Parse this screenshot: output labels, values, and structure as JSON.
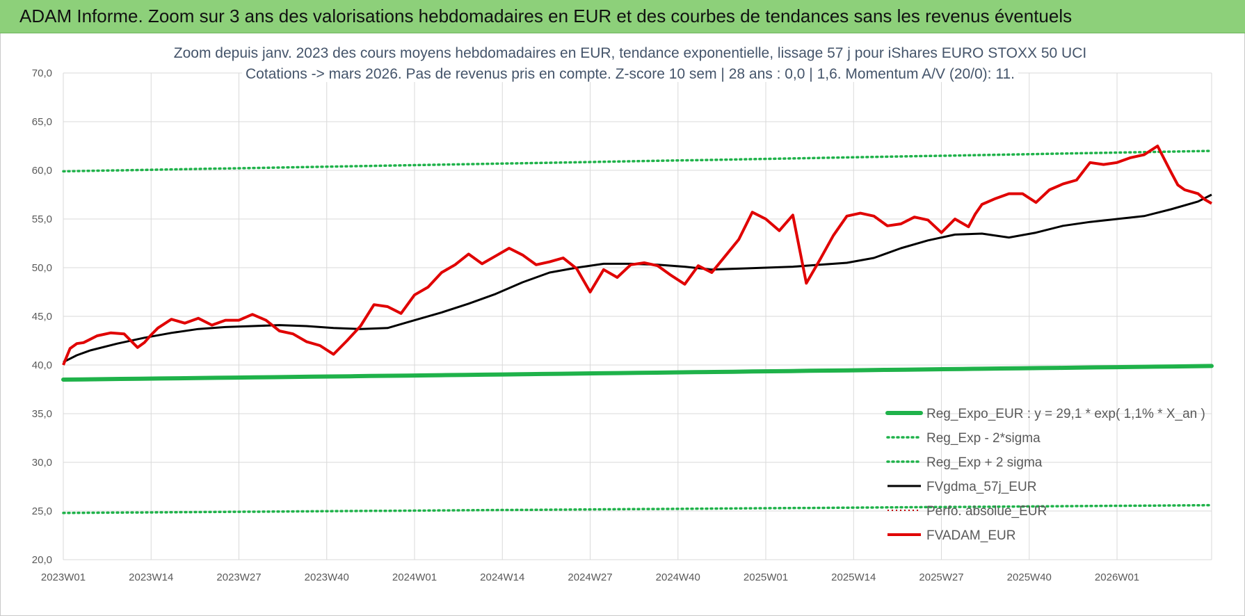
{
  "header": {
    "title": "ADAM Informe. Zoom sur 3 ans des valorisations hebdomadaires en EUR et des courbes de tendances sans les revenus éventuels"
  },
  "chart_data": {
    "type": "line",
    "title_lines": [
      "Zoom depuis janv. 2023 des cours moyens hebdomadaires en EUR, tendance exponentielle, lissage 57 j pour iShares EURO STOXX 50 UCI",
      "Cotations -> mars 2026. Pas de revenus pris en compte. Z-score 10 sem | 28 ans : 0,0 | 1,6. Momentum A/V (20/0): 11."
    ],
    "ylim": [
      20,
      70
    ],
    "yticks": [
      "70,0",
      "65,0",
      "60,0",
      "55,0",
      "50,0",
      "45,0",
      "40,0",
      "35,0",
      "30,0",
      "25,0",
      "20,0"
    ],
    "xticks": [
      "2023W01",
      "2023W14",
      "2023W27",
      "2023W40",
      "2024W01",
      "2024W14",
      "2024W27",
      "2024W40",
      "2025W01",
      "2025W14",
      "2025W27",
      "2025W40",
      "2026W01"
    ],
    "grid": true,
    "legend_position": "bottom-right",
    "series": [
      {
        "name": "Reg_Expo_EUR : y = 29,1 * exp( 1,1% *  X_an )",
        "color": "#1fb24a",
        "style": "solid-thick",
        "x": [
          0,
          170
        ],
        "y": [
          38.5,
          39.9
        ]
      },
      {
        "name": "Reg_Exp - 2*sigma",
        "color": "#1fb24a",
        "style": "dotted",
        "x": [
          0,
          170
        ],
        "y": [
          24.8,
          25.6
        ]
      },
      {
        "name": "Reg_Exp + 2 sigma",
        "color": "#1fb24a",
        "style": "dotted",
        "x": [
          0,
          170
        ],
        "y": [
          59.9,
          62.0
        ]
      },
      {
        "name": "FVgdma_57j_EUR",
        "color": "#000000",
        "style": "solid",
        "x": [
          0,
          2,
          4,
          8,
          12,
          16,
          20,
          24,
          28,
          32,
          36,
          40,
          44,
          48,
          52,
          56,
          60,
          64,
          68,
          72,
          76,
          80,
          84,
          88,
          92,
          96,
          100,
          104,
          108,
          112,
          116,
          120,
          124,
          128,
          132,
          136,
          140,
          144,
          148,
          152,
          156,
          160,
          164,
          168,
          170
        ],
        "y": [
          40.3,
          41.0,
          41.5,
          42.2,
          42.8,
          43.3,
          43.7,
          43.9,
          44.0,
          44.1,
          44.0,
          43.8,
          43.7,
          43.8,
          44.6,
          45.4,
          46.3,
          47.3,
          48.5,
          49.5,
          50.0,
          50.4,
          50.4,
          50.3,
          50.1,
          49.8,
          49.9,
          50.0,
          50.1,
          50.3,
          50.5,
          51.0,
          52.0,
          52.8,
          53.4,
          53.5,
          53.1,
          53.6,
          54.3,
          54.7,
          55.0,
          55.3,
          56.0,
          56.8,
          57.5
        ],
        "x2": [
          0,
          2,
          4,
          8,
          12,
          16,
          20,
          24,
          28,
          32,
          36,
          40,
          44,
          48,
          52,
          56,
          60,
          64,
          68,
          72,
          76,
          80,
          84,
          88,
          92,
          96,
          100,
          104,
          108,
          112,
          116,
          120,
          124,
          128,
          132,
          136,
          140,
          144,
          148,
          152,
          156,
          160,
          164,
          168,
          170
        ]
      },
      {
        "name": "Perfo. absolue_EUR",
        "color": "#c00000",
        "style": "dotted-thin",
        "x": [],
        "y": []
      },
      {
        "name": "FVADAM_EUR",
        "color": "#e00000",
        "style": "solid",
        "x": [
          0,
          1,
          2,
          3,
          5,
          7,
          9,
          11,
          12,
          13,
          14,
          16,
          18,
          20,
          22,
          24,
          26,
          28,
          30,
          32,
          34,
          36,
          38,
          40,
          42,
          44,
          46,
          48,
          50,
          52,
          54,
          56,
          58,
          60,
          62,
          64,
          66,
          68,
          70,
          72,
          74,
          76,
          78,
          80,
          82,
          84,
          86,
          88,
          90,
          92,
          94,
          96,
          98,
          100,
          102,
          104,
          106,
          108,
          110,
          112,
          114,
          116,
          118,
          120,
          122,
          124,
          126,
          128,
          130,
          132,
          134,
          135,
          136,
          138,
          140,
          142,
          144,
          146,
          148,
          150,
          152,
          154,
          156,
          158,
          160,
          162,
          164,
          165,
          166,
          168,
          169,
          170
        ],
        "y": [
          40.0,
          41.7,
          42.2,
          42.3,
          43.0,
          43.3,
          43.2,
          41.8,
          42.3,
          43.1,
          43.8,
          44.7,
          44.3,
          44.8,
          44.1,
          44.6,
          44.6,
          45.2,
          44.6,
          43.5,
          43.2,
          42.4,
          42.0,
          41.1,
          42.5,
          44.0,
          46.2,
          46.0,
          45.3,
          47.2,
          48.0,
          49.5,
          50.3,
          51.4,
          50.4,
          51.2,
          52.0,
          51.3,
          50.3,
          50.6,
          51.0,
          49.9,
          47.5,
          49.8,
          49.0,
          50.3,
          50.5,
          50.2,
          49.2,
          48.3,
          50.2,
          49.5,
          51.2,
          52.9,
          55.7,
          55.0,
          53.8,
          55.4,
          48.4,
          50.8,
          53.3,
          55.3,
          55.6,
          55.3,
          54.3,
          54.5,
          55.2,
          54.9,
          53.6,
          55.0,
          54.2,
          55.5,
          56.5,
          57.1,
          57.6,
          57.6,
          56.7,
          58.0,
          58.6,
          59.0,
          60.8,
          60.6,
          60.8,
          61.3,
          61.6,
          62.5,
          59.8,
          58.5,
          58.0,
          57.6,
          57.0,
          56.6
        ]
      }
    ]
  }
}
